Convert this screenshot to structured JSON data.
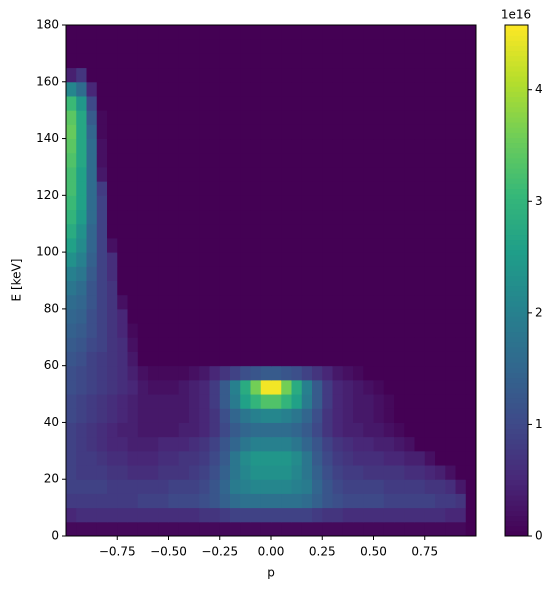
{
  "chart_data": {
    "type": "heatmap",
    "xlabel": "p",
    "ylabel": "E [keV]",
    "xlim": [
      -1.0,
      1.0
    ],
    "ylim": [
      0,
      180
    ],
    "xticks": [
      {
        "value": -0.75,
        "label": "−0.75"
      },
      {
        "value": -0.5,
        "label": "−0.50"
      },
      {
        "value": -0.25,
        "label": "−0.25"
      },
      {
        "value": 0,
        "label": "0.00"
      },
      {
        "value": 0.25,
        "label": "0.25"
      },
      {
        "value": 0.5,
        "label": "0.50"
      },
      {
        "value": 0.75,
        "label": "0.75"
      }
    ],
    "yticks": [
      0,
      20,
      40,
      60,
      80,
      100,
      120,
      140,
      160,
      180
    ],
    "colormap": "viridis",
    "clim": [
      0,
      4.58
    ],
    "colorbar_ticks": [
      0,
      1,
      2,
      3,
      4
    ],
    "colorbar_offset_label": "1e16",
    "x_edges": [
      -1.0,
      -0.95,
      -0.9,
      -0.85,
      -0.8,
      -0.75,
      -0.7,
      -0.65,
      -0.6,
      -0.55,
      -0.5,
      -0.45,
      -0.4,
      -0.35,
      -0.3,
      -0.25,
      -0.2,
      -0.15,
      -0.1,
      -0.05,
      0.0,
      0.05,
      0.1,
      0.15,
      0.2,
      0.25,
      0.3,
      0.35,
      0.4,
      0.45,
      0.5,
      0.55,
      0.6,
      0.65,
      0.7,
      0.75,
      0.8,
      0.85,
      0.9,
      0.95,
      1.0
    ],
    "y_edges": [
      0,
      5,
      10,
      15,
      20,
      25,
      30,
      35,
      40,
      45,
      50,
      55,
      60,
      65,
      70,
      75,
      80,
      85,
      90,
      95,
      100,
      105,
      110,
      115,
      120,
      125,
      130,
      135,
      140,
      145,
      150,
      155,
      160,
      165,
      170,
      175,
      180
    ],
    "z": [
      [
        0.1,
        0.1,
        0.1,
        0.1,
        0.1,
        0.1,
        0.1,
        0.1,
        0.1,
        0.1,
        0.1,
        0.1,
        0.1,
        0.1,
        0.1,
        0.1,
        0.1,
        0.1,
        0.1,
        0.1,
        0.1,
        0.1,
        0.1,
        0.1,
        0.1,
        0.1,
        0.1,
        0.1,
        0.1,
        0.1,
        0.1,
        0.1,
        0.1,
        0.1,
        0.1,
        0.1,
        0.1,
        0.1,
        0.1,
        0
      ],
      [
        0.5,
        0.6,
        0.6,
        0.6,
        0.6,
        0.6,
        0.6,
        0.6,
        0.6,
        0.6,
        0.6,
        0.6,
        0.6,
        0.7,
        0.7,
        0.8,
        0.9,
        0.9,
        0.9,
        0.9,
        0.9,
        0.9,
        0.9,
        0.9,
        0.8,
        0.7,
        0.7,
        0.6,
        0.6,
        0.6,
        0.6,
        0.6,
        0.6,
        0.6,
        0.6,
        0.6,
        0.6,
        0.5,
        0.5,
        0
      ],
      [
        0.8,
        0.8,
        0.8,
        0.8,
        0.8,
        0.8,
        0.8,
        0.9,
        0.9,
        0.9,
        1.0,
        1.0,
        1.0,
        1.1,
        1.2,
        1.4,
        1.6,
        1.7,
        1.7,
        1.7,
        1.7,
        1.7,
        1.7,
        1.6,
        1.4,
        1.2,
        1.1,
        1.0,
        1.0,
        1.0,
        1.0,
        0.9,
        0.9,
        0.9,
        0.9,
        0.9,
        0.8,
        0.8,
        0.7,
        0
      ],
      [
        0.9,
        0.9,
        0.9,
        0.9,
        0.8,
        0.8,
        0.8,
        0.8,
        0.8,
        0.8,
        0.9,
        0.9,
        0.9,
        1.0,
        1.2,
        1.5,
        1.9,
        2.0,
        2.1,
        2.1,
        2.1,
        2.1,
        2.0,
        1.9,
        1.5,
        1.2,
        1.0,
        0.9,
        0.9,
        0.9,
        0.9,
        0.8,
        0.8,
        0.8,
        0.8,
        0.7,
        0.7,
        0.6,
        0.3,
        0
      ],
      [
        0.9,
        0.8,
        0.8,
        0.8,
        0.7,
        0.7,
        0.6,
        0.6,
        0.6,
        0.7,
        0.7,
        0.7,
        0.8,
        0.9,
        1.1,
        1.4,
        1.8,
        2.1,
        2.3,
        2.3,
        2.3,
        2.3,
        2.1,
        1.8,
        1.4,
        1.1,
        0.9,
        0.8,
        0.8,
        0.7,
        0.7,
        0.7,
        0.7,
        0.6,
        0.6,
        0.5,
        0.4,
        0.2,
        0,
        0
      ],
      [
        0.9,
        0.8,
        0.8,
        0.7,
        0.6,
        0.6,
        0.5,
        0.5,
        0.5,
        0.6,
        0.6,
        0.7,
        0.7,
        0.8,
        1.0,
        1.3,
        1.8,
        2.2,
        2.4,
        2.4,
        2.4,
        2.4,
        2.2,
        1.8,
        1.3,
        1.0,
        0.8,
        0.7,
        0.6,
        0.6,
        0.6,
        0.5,
        0.5,
        0.4,
        0.4,
        0.2,
        0,
        0,
        0,
        0
      ],
      [
        0.9,
        0.8,
        0.7,
        0.6,
        0.5,
        0.5,
        0.4,
        0.4,
        0.4,
        0.5,
        0.5,
        0.5,
        0.6,
        0.7,
        0.9,
        1.2,
        1.5,
        1.8,
        2.0,
        2.0,
        2.0,
        2.0,
        1.8,
        1.5,
        1.2,
        0.9,
        0.7,
        0.6,
        0.5,
        0.5,
        0.4,
        0.4,
        0.3,
        0.2,
        0,
        0,
        0,
        0,
        0,
        0
      ],
      [
        0.9,
        0.8,
        0.7,
        0.6,
        0.5,
        0.4,
        0.4,
        0.3,
        0.3,
        0.3,
        0.3,
        0.4,
        0.4,
        0.5,
        0.7,
        1.0,
        1.3,
        1.5,
        1.6,
        1.6,
        1.6,
        1.6,
        1.5,
        1.3,
        1.0,
        0.7,
        0.5,
        0.4,
        0.4,
        0.3,
        0.3,
        0.2,
        0.1,
        0,
        0,
        0,
        0,
        0,
        0,
        0
      ],
      [
        1.0,
        0.9,
        0.8,
        0.7,
        0.6,
        0.5,
        0.4,
        0.3,
        0.3,
        0.3,
        0.3,
        0.3,
        0.4,
        0.5,
        0.7,
        1.1,
        1.5,
        1.8,
        2.0,
        2.1,
        2.1,
        2.0,
        1.8,
        1.5,
        1.1,
        0.7,
        0.5,
        0.4,
        0.3,
        0.3,
        0.2,
        0.1,
        0,
        0,
        0,
        0,
        0,
        0,
        0,
        0
      ],
      [
        1.0,
        0.9,
        0.8,
        0.7,
        0.6,
        0.5,
        0.4,
        0.3,
        0.3,
        0.3,
        0.3,
        0.3,
        0.4,
        0.5,
        0.8,
        1.3,
        1.9,
        2.6,
        3.0,
        3.3,
        3.3,
        3.0,
        2.6,
        1.9,
        1.3,
        0.8,
        0.5,
        0.4,
        0.3,
        0.3,
        0.2,
        0.1,
        0,
        0,
        0,
        0,
        0,
        0,
        0,
        0
      ],
      [
        1.1,
        1.0,
        0.9,
        0.8,
        0.7,
        0.6,
        0.5,
        0.3,
        0.2,
        0.2,
        0.2,
        0.3,
        0.4,
        0.5,
        0.8,
        1.3,
        2.0,
        2.8,
        3.6,
        4.5,
        4.5,
        3.6,
        2.8,
        2.0,
        1.3,
        0.8,
        0.5,
        0.4,
        0.3,
        0.2,
        0.1,
        0,
        0,
        0,
        0,
        0,
        0,
        0,
        0,
        0
      ],
      [
        1.1,
        1.0,
        0.9,
        0.8,
        0.7,
        0.6,
        0.4,
        0.2,
        0.1,
        0.1,
        0.1,
        0.1,
        0.2,
        0.3,
        0.5,
        0.7,
        0.9,
        1.1,
        1.2,
        1.3,
        1.3,
        1.2,
        1.1,
        0.9,
        0.7,
        0.5,
        0.3,
        0.2,
        0.1,
        0,
        0,
        0,
        0,
        0,
        0,
        0,
        0,
        0,
        0,
        0
      ],
      [
        1.2,
        1.1,
        0.9,
        0.8,
        0.7,
        0.6,
        0.3,
        0,
        0,
        0,
        0,
        0,
        0,
        0,
        0,
        0,
        0,
        0,
        0,
        0,
        0,
        0,
        0,
        0,
        0,
        0,
        0,
        0,
        0,
        0,
        0,
        0,
        0,
        0,
        0,
        0,
        0,
        0,
        0,
        0
      ],
      [
        1.3,
        1.2,
        1.0,
        0.9,
        0.7,
        0.6,
        0.2,
        0,
        0,
        0,
        0,
        0,
        0,
        0,
        0,
        0,
        0,
        0,
        0,
        0,
        0,
        0,
        0,
        0,
        0,
        0,
        0,
        0,
        0,
        0,
        0,
        0,
        0,
        0,
        0,
        0,
        0,
        0,
        0,
        0
      ],
      [
        1.4,
        1.3,
        1.1,
        0.9,
        0.7,
        0.5,
        0.1,
        0,
        0,
        0,
        0,
        0,
        0,
        0,
        0,
        0,
        0,
        0,
        0,
        0,
        0,
        0,
        0,
        0,
        0,
        0,
        0,
        0,
        0,
        0,
        0,
        0,
        0,
        0,
        0,
        0,
        0,
        0,
        0,
        0
      ],
      [
        1.5,
        1.4,
        1.1,
        0.9,
        0.7,
        0.5,
        0,
        0,
        0,
        0,
        0,
        0,
        0,
        0,
        0,
        0,
        0,
        0,
        0,
        0,
        0,
        0,
        0,
        0,
        0,
        0,
        0,
        0,
        0,
        0,
        0,
        0,
        0,
        0,
        0,
        0,
        0,
        0,
        0,
        0
      ],
      [
        1.6,
        1.5,
        1.2,
        0.9,
        0.7,
        0.2,
        0,
        0,
        0,
        0,
        0,
        0,
        0,
        0,
        0,
        0,
        0,
        0,
        0,
        0,
        0,
        0,
        0,
        0,
        0,
        0,
        0,
        0,
        0,
        0,
        0,
        0,
        0,
        0,
        0,
        0,
        0,
        0,
        0,
        0
      ],
      [
        1.8,
        1.6,
        1.2,
        0.9,
        0.7,
        0,
        0,
        0,
        0,
        0,
        0,
        0,
        0,
        0,
        0,
        0,
        0,
        0,
        0,
        0,
        0,
        0,
        0,
        0,
        0,
        0,
        0,
        0,
        0,
        0,
        0,
        0,
        0,
        0,
        0,
        0,
        0,
        0,
        0,
        0
      ],
      [
        2.0,
        1.8,
        1.3,
        0.9,
        0.6,
        0,
        0,
        0,
        0,
        0,
        0,
        0,
        0,
        0,
        0,
        0,
        0,
        0,
        0,
        0,
        0,
        0,
        0,
        0,
        0,
        0,
        0,
        0,
        0,
        0,
        0,
        0,
        0,
        0,
        0,
        0,
        0,
        0,
        0,
        0
      ],
      [
        2.3,
        2.0,
        1.4,
        0.9,
        0.6,
        0,
        0,
        0,
        0,
        0,
        0,
        0,
        0,
        0,
        0,
        0,
        0,
        0,
        0,
        0,
        0,
        0,
        0,
        0,
        0,
        0,
        0,
        0,
        0,
        0,
        0,
        0,
        0,
        0,
        0,
        0,
        0,
        0,
        0,
        0
      ],
      [
        2.6,
        2.2,
        1.5,
        0.9,
        0.2,
        0,
        0,
        0,
        0,
        0,
        0,
        0,
        0,
        0,
        0,
        0,
        0,
        0,
        0,
        0,
        0,
        0,
        0,
        0,
        0,
        0,
        0,
        0,
        0,
        0,
        0,
        0,
        0,
        0,
        0,
        0,
        0,
        0,
        0,
        0
      ],
      [
        2.8,
        2.3,
        1.5,
        0.9,
        0,
        0,
        0,
        0,
        0,
        0,
        0,
        0,
        0,
        0,
        0,
        0,
        0,
        0,
        0,
        0,
        0,
        0,
        0,
        0,
        0,
        0,
        0,
        0,
        0,
        0,
        0,
        0,
        0,
        0,
        0,
        0,
        0,
        0,
        0,
        0
      ],
      [
        3.0,
        2.5,
        1.6,
        0.9,
        0,
        0,
        0,
        0,
        0,
        0,
        0,
        0,
        0,
        0,
        0,
        0,
        0,
        0,
        0,
        0,
        0,
        0,
        0,
        0,
        0,
        0,
        0,
        0,
        0,
        0,
        0,
        0,
        0,
        0,
        0,
        0,
        0,
        0,
        0,
        0
      ],
      [
        3.1,
        2.6,
        1.6,
        0.9,
        0,
        0,
        0,
        0,
        0,
        0,
        0,
        0,
        0,
        0,
        0,
        0,
        0,
        0,
        0,
        0,
        0,
        0,
        0,
        0,
        0,
        0,
        0,
        0,
        0,
        0,
        0,
        0,
        0,
        0,
        0,
        0,
        0,
        0,
        0,
        0
      ],
      [
        3.2,
        2.6,
        1.6,
        0.8,
        0,
        0,
        0,
        0,
        0,
        0,
        0,
        0,
        0,
        0,
        0,
        0,
        0,
        0,
        0,
        0,
        0,
        0,
        0,
        0,
        0,
        0,
        0,
        0,
        0,
        0,
        0,
        0,
        0,
        0,
        0,
        0,
        0,
        0,
        0,
        0
      ],
      [
        3.2,
        2.6,
        1.6,
        0.3,
        0,
        0,
        0,
        0,
        0,
        0,
        0,
        0,
        0,
        0,
        0,
        0,
        0,
        0,
        0,
        0,
        0,
        0,
        0,
        0,
        0,
        0,
        0,
        0,
        0,
        0,
        0,
        0,
        0,
        0,
        0,
        0,
        0,
        0,
        0,
        0
      ],
      [
        3.3,
        2.7,
        1.6,
        0.2,
        0,
        0,
        0,
        0,
        0,
        0,
        0,
        0,
        0,
        0,
        0,
        0,
        0,
        0,
        0,
        0,
        0,
        0,
        0,
        0,
        0,
        0,
        0,
        0,
        0,
        0,
        0,
        0,
        0,
        0,
        0,
        0,
        0,
        0,
        0,
        0
      ],
      [
        3.4,
        2.7,
        1.6,
        0.2,
        0,
        0,
        0,
        0,
        0,
        0,
        0,
        0,
        0,
        0,
        0,
        0,
        0,
        0,
        0,
        0,
        0,
        0,
        0,
        0,
        0,
        0,
        0,
        0,
        0,
        0,
        0,
        0,
        0,
        0,
        0,
        0,
        0,
        0,
        0,
        0
      ],
      [
        3.5,
        2.7,
        1.5,
        0.1,
        0,
        0,
        0,
        0,
        0,
        0,
        0,
        0,
        0,
        0,
        0,
        0,
        0,
        0,
        0,
        0,
        0,
        0,
        0,
        0,
        0,
        0,
        0,
        0,
        0,
        0,
        0,
        0,
        0,
        0,
        0,
        0,
        0,
        0,
        0,
        0
      ],
      [
        3.4,
        2.7,
        1.3,
        0.1,
        0,
        0,
        0,
        0,
        0,
        0,
        0,
        0,
        0,
        0,
        0,
        0,
        0,
        0,
        0,
        0,
        0,
        0,
        0,
        0,
        0,
        0,
        0,
        0,
        0,
        0,
        0,
        0,
        0,
        0,
        0,
        0,
        0,
        0,
        0,
        0
      ],
      [
        3.1,
        2.4,
        1.0,
        0,
        0,
        0,
        0,
        0,
        0,
        0,
        0,
        0,
        0,
        0,
        0,
        0,
        0,
        0,
        0,
        0,
        0,
        0,
        0,
        0,
        0,
        0,
        0,
        0,
        0,
        0,
        0,
        0,
        0,
        0,
        0,
        0,
        0,
        0,
        0,
        0
      ],
      [
        2.1,
        1.6,
        0.5,
        0,
        0,
        0,
        0,
        0,
        0,
        0,
        0,
        0,
        0,
        0,
        0,
        0,
        0,
        0,
        0,
        0,
        0,
        0,
        0,
        0,
        0,
        0,
        0,
        0,
        0,
        0,
        0,
        0,
        0,
        0,
        0,
        0,
        0,
        0,
        0,
        0
      ],
      [
        0.4,
        0.7,
        0,
        0,
        0,
        0,
        0,
        0,
        0,
        0,
        0,
        0,
        0,
        0,
        0,
        0,
        0,
        0,
        0,
        0,
        0,
        0,
        0,
        0,
        0,
        0,
        0,
        0,
        0,
        0,
        0,
        0,
        0,
        0,
        0,
        0,
        0,
        0,
        0,
        0
      ],
      [
        0,
        0,
        0,
        0,
        0,
        0,
        0,
        0,
        0,
        0,
        0,
        0,
        0,
        0,
        0,
        0,
        0,
        0,
        0,
        0,
        0,
        0,
        0,
        0,
        0,
        0,
        0,
        0,
        0,
        0,
        0,
        0,
        0,
        0,
        0,
        0,
        0,
        0,
        0,
        0
      ],
      [
        0,
        0,
        0,
        0,
        0,
        0,
        0,
        0,
        0,
        0,
        0,
        0,
        0,
        0,
        0,
        0,
        0,
        0,
        0,
        0,
        0,
        0,
        0,
        0,
        0,
        0,
        0,
        0,
        0,
        0,
        0,
        0,
        0,
        0,
        0,
        0,
        0,
        0,
        0,
        0
      ],
      [
        0,
        0,
        0,
        0,
        0,
        0,
        0,
        0,
        0,
        0,
        0,
        0,
        0,
        0,
        0,
        0,
        0,
        0,
        0,
        0,
        0,
        0,
        0,
        0,
        0,
        0,
        0,
        0,
        0,
        0,
        0,
        0,
        0,
        0,
        0,
        0,
        0,
        0,
        0,
        0
      ]
    ]
  }
}
